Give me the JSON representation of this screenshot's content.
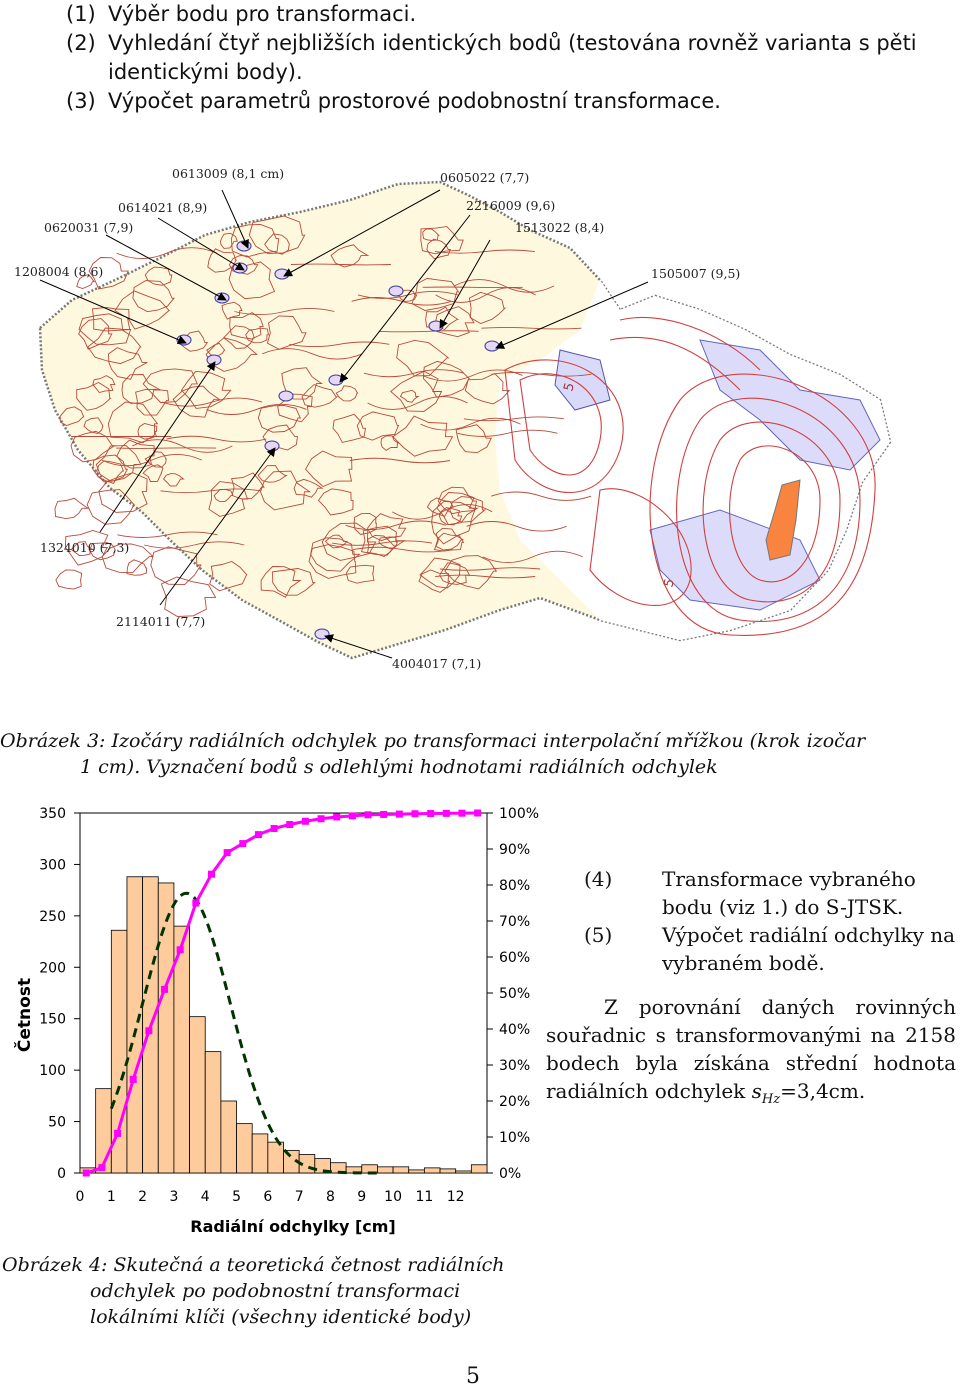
{
  "steps": [
    {
      "num": "(1)",
      "text": "Výběr bodu pro transformaci."
    },
    {
      "num": "(2)",
      "text": "Vyhledání čtyř nejbližších identických bodů (testována rovněž varianta s pěti identickými body)."
    },
    {
      "num": "(3)",
      "text": "Výpočet parametrů prostorové podobnostní transformace."
    }
  ],
  "map": {
    "labels": [
      "0613009 (8,1 cm)",
      "0605022 (7,7)",
      "0614021 (8,9)",
      "2216009 (9,6)",
      "0620031 (7,9)",
      "1513022 (8,4)",
      "1208004 (8,6)",
      "1505007 (9,5)",
      "1324010 (7,3)",
      "2114011 (7,7)",
      "4004017 (7,1)"
    ],
    "contour_label_a": "5",
    "contour_label_b": "5"
  },
  "figure3": {
    "caption_line1": "Obrázek 3: Izočáry radiálních odchylek po transformaci interpolační mřížkou (krok izočar",
    "caption_line2": "1 cm). Vyznačení bodů s odlehlými hodnotami radiálních odchylek"
  },
  "chart_data": {
    "type": "bar",
    "xlabel": "Radiální odchylky [cm]",
    "ylabel": "Četnost",
    "ylim": [
      0,
      350
    ],
    "y_ticks": [
      "0",
      "50",
      "100",
      "150",
      "200",
      "250",
      "300",
      "350"
    ],
    "y2_ticks": [
      "0%",
      "10%",
      "20%",
      "30%",
      "40%",
      "50%",
      "60%",
      "70%",
      "80%",
      "90%",
      "100%"
    ],
    "x_ticks": [
      "0",
      "1",
      "2",
      "3",
      "4",
      "5",
      "6",
      "7",
      "8",
      "9",
      "10",
      "11",
      "12"
    ],
    "bar_width": 0.5,
    "bar_x_start": 0,
    "bars": [
      5,
      82,
      236,
      288,
      288,
      282,
      240,
      152,
      118,
      70,
      48,
      38,
      30,
      22,
      18,
      14,
      10,
      6,
      8,
      6,
      6,
      3,
      5,
      4,
      2,
      8
    ],
    "cumulative_percent": [
      0,
      1.5,
      11,
      26,
      39.5,
      51,
      62,
      75,
      83,
      89,
      91.5,
      94,
      95.7,
      96.8,
      97.7,
      98.4,
      98.9,
      99.2,
      99.5,
      99.6,
      99.7,
      99.8,
      99.85,
      99.9,
      99.95,
      100
    ],
    "normal_curve": {
      "mean": 3.4,
      "sd": 1.4,
      "peak": 272,
      "range": [
        1,
        7.6
      ]
    },
    "colors": {
      "bars": "#FDCB9C",
      "cumulative": "#FF00FF",
      "normal": "#003300"
    }
  },
  "figure4": {
    "caption_line1": "Obrázek 4: Skutečná a teoretická četnost radiálních",
    "caption_line2": "odchylek po podobnostní transformaci",
    "caption_line3": "lokálními klíči (všechny identické body)"
  },
  "right_text": {
    "item4_num": "(4)",
    "item4": "Transformace vybraného bodu (viz 1.) do S-JTSK.",
    "item5_num": "(5)",
    "item5": "Výpočet radiální odchylky na vybraném bodě.",
    "paragraph": "Z porovnání daných rovinných souřadnic s transformovanými na 2158 bodech byla získána střední hodnota radiálních odchylek",
    "sym_s": "s",
    "sym_sub": "Hz",
    "sym_value": "=3,4cm",
    "sym_end": "."
  },
  "page_number": "5"
}
